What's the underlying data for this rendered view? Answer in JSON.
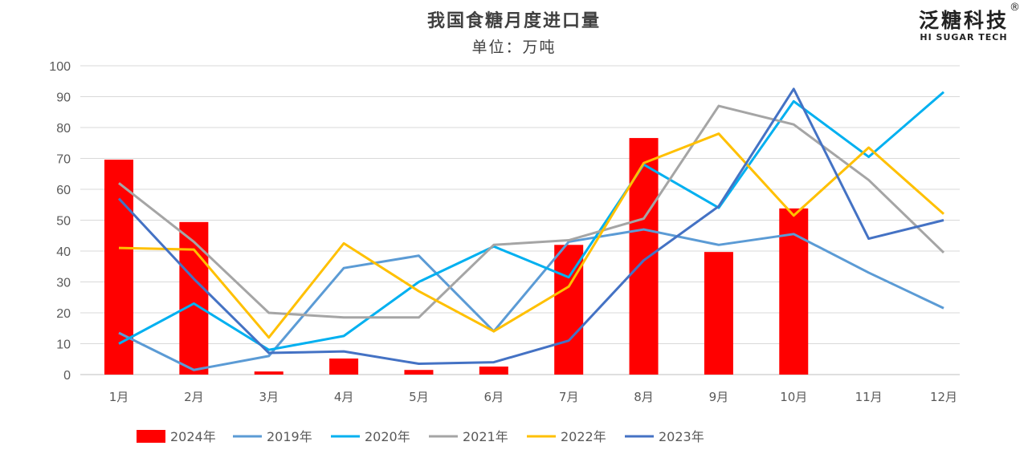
{
  "chart_data": {
    "type": "bar+line",
    "title": "我国食糖月度进口量",
    "subtitle": "单位：万吨",
    "categories": [
      "1月",
      "2月",
      "3月",
      "4月",
      "5月",
      "6月",
      "7月",
      "8月",
      "9月",
      "10月",
      "11月",
      "12月"
    ],
    "ylim": [
      0,
      100
    ],
    "yticks": [
      0,
      10,
      20,
      30,
      40,
      50,
      60,
      70,
      80,
      90,
      100
    ],
    "grid": true,
    "legend_position": "bottom",
    "bar_series": {
      "name": "2024年",
      "color": "#ff0000",
      "values": [
        69.6,
        49.4,
        1.0,
        5.2,
        1.5,
        2.6,
        42.0,
        76.6,
        39.7,
        53.8,
        null,
        null
      ]
    },
    "series": [
      {
        "name": "2019年",
        "color": "#5b9bd5",
        "values": [
          13.5,
          1.5,
          6.0,
          34.5,
          38.5,
          14.0,
          43.0,
          47.0,
          42.0,
          45.5,
          33.0,
          21.5
        ]
      },
      {
        "name": "2020年",
        "color": "#00b0f0",
        "values": [
          10.0,
          23.0,
          8.0,
          12.5,
          30.0,
          41.5,
          31.5,
          68.0,
          54.0,
          88.5,
          70.5,
          91.5
        ]
      },
      {
        "name": "2021年",
        "color": "#a5a5a5",
        "values": [
          62.0,
          43.0,
          20.0,
          18.5,
          18.5,
          42.0,
          43.5,
          50.5,
          87.0,
          81.0,
          63.0,
          39.5
        ]
      },
      {
        "name": "2022年",
        "color": "#ffc000",
        "values": [
          41.0,
          40.5,
          12.0,
          42.5,
          27.0,
          14.0,
          28.5,
          68.5,
          78.0,
          51.5,
          73.5,
          52.0
        ]
      },
      {
        "name": "2023年",
        "color": "#4472c4",
        "values": [
          57.0,
          31.0,
          7.0,
          7.5,
          3.5,
          4.0,
          11.0,
          37.0,
          54.5,
          92.5,
          44.0,
          50.0
        ]
      }
    ]
  },
  "logo": {
    "cn": "泛糖科技",
    "en": "HI SUGAR TECH",
    "mark": "®"
  }
}
